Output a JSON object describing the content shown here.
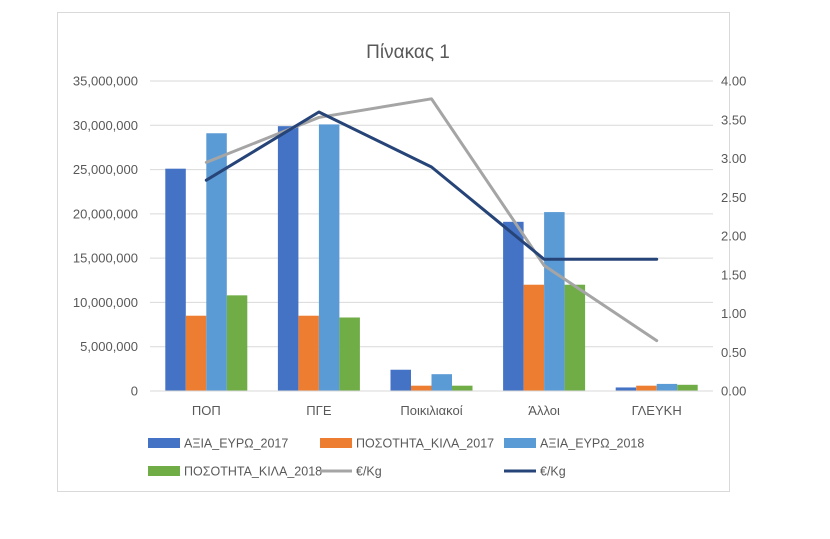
{
  "chart_data": {
    "type": "bar",
    "title": "Πίνακας 1",
    "categories": [
      "ΠΟΠ",
      "ΠΓΕ",
      "Ποικιλιακοί",
      "Άλλοι",
      "ΓΛΕΥΚΗ"
    ],
    "y_left": {
      "ylim": [
        0,
        35000000
      ],
      "ticks": [
        "0",
        "5,000,000",
        "10,000,000",
        "15,000,000",
        "20,000,000",
        "25,000,000",
        "30,000,000",
        "35,000,000"
      ]
    },
    "y_right": {
      "ylim": [
        0,
        4.0
      ],
      "ticks": [
        "0.00",
        "0.50",
        "1.00",
        "1.50",
        "2.00",
        "2.50",
        "3.00",
        "3.50",
        "4.00"
      ]
    },
    "grid": true,
    "legend_position": "bottom",
    "series": [
      {
        "name": "ΑΞΙΑ_ΕΥΡΩ_2017",
        "type": "bar",
        "axis": "left",
        "color": "#4472c4",
        "values": [
          25100000,
          29900000,
          2400000,
          19100000,
          400000
        ]
      },
      {
        "name": "ΠΟΣΟΤΗΤΑ_ΚΙΛΑ_2017",
        "type": "bar",
        "axis": "left",
        "color": "#ed7d31",
        "values": [
          8500000,
          8500000,
          600000,
          12000000,
          600000
        ]
      },
      {
        "name": "ΑΞΙΑ_ΕΥΡΩ_2018",
        "type": "bar",
        "axis": "left",
        "color": "#5b9bd5",
        "values": [
          29100000,
          30100000,
          1900000,
          20200000,
          800000
        ]
      },
      {
        "name": "ΠΟΣΟΤΗΤΑ_ΚΙΛΑ_2018",
        "type": "bar",
        "axis": "left",
        "color": "#70ad47",
        "values": [
          10800000,
          8300000,
          600000,
          12000000,
          700000
        ]
      },
      {
        "name": "€/Kg",
        "type": "line",
        "axis": "right",
        "color": "#a5a5a5",
        "values": [
          2.95,
          3.53,
          3.77,
          1.62,
          0.65
        ]
      },
      {
        "name": "€/Kg",
        "type": "line",
        "axis": "right",
        "color": "#264478",
        "values": [
          2.72,
          3.6,
          2.89,
          1.7,
          1.7
        ]
      }
    ]
  }
}
